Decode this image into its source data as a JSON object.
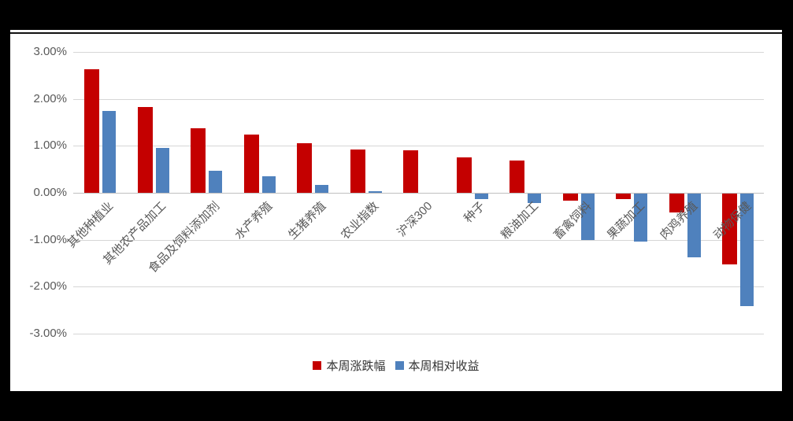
{
  "colors": {
    "background": "#000000",
    "panel": "#FFFFFF",
    "gridline": "#D6D6D6",
    "zero_line": "#BFBFBF",
    "axis_text": "#595959",
    "series_red": "#C40000",
    "series_blue": "#4F81BD"
  },
  "chart_data": {
    "type": "bar",
    "title": "",
    "categories": [
      "其他种植业",
      "其他农产品加工",
      "食品及饲料添加剂",
      "水产养殖",
      "生猪养殖",
      "农业指数",
      "沪深300",
      "种子",
      "粮油加工",
      "畜禽饲料",
      "果蔬加工",
      "肉鸡养殖",
      "动物保健"
    ],
    "series": [
      {
        "name": "本周涨跌幅",
        "color": "#C40000",
        "values": [
          2.63,
          1.82,
          1.37,
          1.24,
          1.05,
          0.92,
          0.9,
          0.75,
          0.68,
          -0.15,
          -0.12,
          -0.4,
          -1.51
        ]
      },
      {
        "name": "本周相对收益",
        "color": "#4F81BD",
        "values": [
          1.75,
          0.95,
          0.47,
          0.35,
          0.16,
          0.04,
          0.0,
          -0.12,
          -0.2,
          -0.98,
          -1.03,
          -1.36,
          -2.4
        ]
      }
    ],
    "y_axis": {
      "min": -3,
      "max": 3,
      "step": 1,
      "ticks": [
        {
          "value": 3,
          "label": "3.00%"
        },
        {
          "value": 2,
          "label": "2.00%"
        },
        {
          "value": 1,
          "label": "1.00%"
        },
        {
          "value": 0,
          "label": "0.00%"
        },
        {
          "value": -1,
          "label": "-1.00%"
        },
        {
          "value": -2,
          "label": "-2.00%"
        },
        {
          "value": -3,
          "label": "-3.00%"
        }
      ]
    },
    "xlabel": "",
    "ylabel": "",
    "grid": true,
    "legend_position": "bottom"
  }
}
